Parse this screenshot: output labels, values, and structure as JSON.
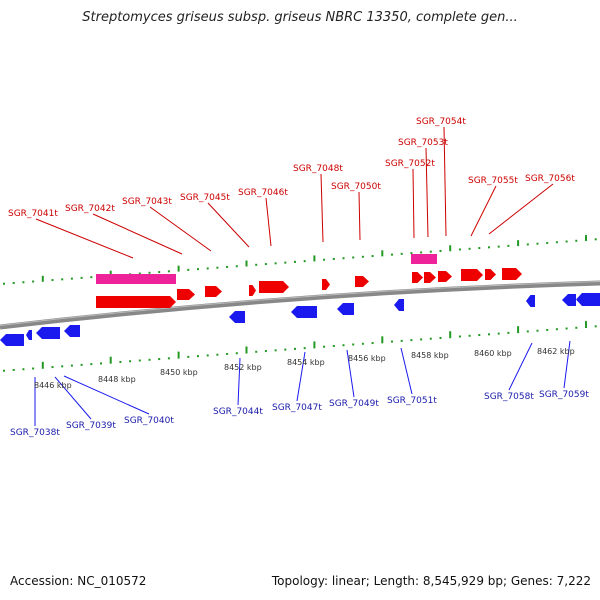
{
  "title": "Streptomyces griseus subsp. griseus NBRC 13350, complete gen...",
  "footer": {
    "accession": "Accession: NC_010572",
    "summary": "Topology: linear; Length: 8,545,929 bp; Genes: 7,222"
  },
  "colors": {
    "forward_gene": "#ee0000",
    "reverse_gene": "#1a1aee",
    "rna_gene": "#ee2299",
    "axis": "#888888",
    "tick": "#229922",
    "forward_label": "#cc0000",
    "reverse_label": "#1a1aaa"
  },
  "scale_labels": [
    "8446 kbp",
    "8448 kbp",
    "8450 kbp",
    "8452 kbp",
    "8454 kbp",
    "8456 kbp",
    "8458 kbp",
    "8460 kbp",
    "8462 kbp"
  ],
  "top_labels": [
    "SGR_7041t",
    "SGR_7042t",
    "SGR_7043t",
    "SGR_7045t",
    "SGR_7046t",
    "SGR_7048t",
    "SGR_7050t",
    "SGR_7052t",
    "SGR_7053t",
    "SGR_7054t",
    "SGR_7055t",
    "SGR_7056t"
  ],
  "bottom_labels": [
    "SGR_7038t",
    "SGR_7039t",
    "SGR_7040t",
    "SGR_7044t",
    "SGR_7047t",
    "SGR_7049t",
    "SGR_7051t",
    "SGR_7058t",
    "SGR_7059t"
  ]
}
